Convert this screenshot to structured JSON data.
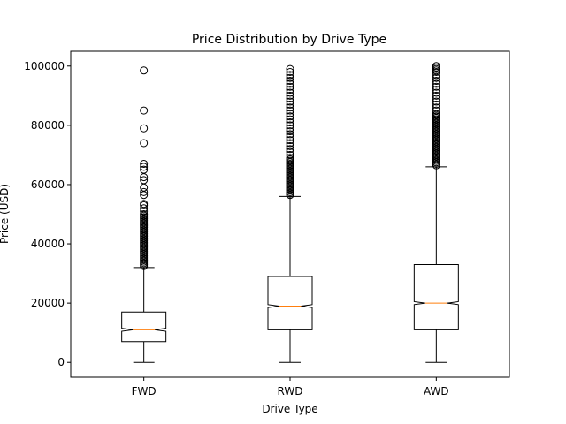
{
  "chart_data": {
    "type": "boxplot",
    "title": "Price Distribution by Drive Type",
    "xlabel": "Drive Type",
    "ylabel": "Price (USD)",
    "ylim": [
      -5000,
      105000
    ],
    "yticks": [
      0,
      20000,
      40000,
      60000,
      80000,
      100000
    ],
    "yticklabels": [
      "0",
      "20000",
      "40000",
      "60000",
      "80000",
      "100000"
    ],
    "notched": true,
    "grid": false,
    "colors": {
      "box": "#000000",
      "median": "#ff7f0e",
      "flier": "#000000"
    },
    "categories": [
      "FWD",
      "RWD",
      "AWD"
    ],
    "boxes": [
      {
        "name": "FWD",
        "whisker_low": 0,
        "q1": 7000,
        "median": 11000,
        "q3": 17000,
        "whisker_high": 32000,
        "notch": [
          10500,
          11500
        ],
        "fliers": [
          32500,
          33000,
          33500,
          34000,
          34500,
          35000,
          35500,
          36000,
          36500,
          37000,
          37500,
          38000,
          38500,
          39000,
          39500,
          40000,
          40500,
          41000,
          41500,
          42000,
          42500,
          43000,
          43500,
          44000,
          44500,
          45000,
          45500,
          46000,
          46500,
          47000,
          47500,
          48000,
          48500,
          49000,
          49500,
          50000,
          51000,
          52000,
          53000,
          53500,
          56500,
          57500,
          59000,
          61500,
          62500,
          65000,
          66000,
          67000,
          74000,
          79000,
          85000,
          98500
        ]
      },
      {
        "name": "RWD",
        "whisker_low": 0,
        "q1": 11000,
        "median": 19000,
        "q3": 29000,
        "whisker_high": 56000,
        "notch": [
          18500,
          19500
        ],
        "fliers": [
          56500,
          57000,
          57500,
          58000,
          58500,
          59000,
          59500,
          60000,
          60500,
          61000,
          61500,
          62000,
          62500,
          63000,
          63500,
          64000,
          64500,
          65000,
          65500,
          66000,
          66500,
          67000,
          67500,
          68000,
          68500,
          69000,
          70000,
          71000,
          72000,
          73000,
          74000,
          75000,
          76000,
          77000,
          78000,
          79000,
          80000,
          81000,
          82000,
          83000,
          84000,
          85000,
          86000,
          87000,
          88000,
          89000,
          90000,
          91000,
          92000,
          93000,
          94000,
          95000,
          96000,
          97000,
          98000,
          99000
        ]
      },
      {
        "name": "AWD",
        "whisker_low": 0,
        "q1": 11000,
        "median": 20000,
        "q3": 33000,
        "whisker_high": 66000,
        "notch": [
          19500,
          20500
        ],
        "fliers": [
          66500,
          67000,
          67500,
          68000,
          68500,
          69000,
          69500,
          70000,
          70500,
          71000,
          71500,
          72000,
          72500,
          73000,
          73500,
          74000,
          74500,
          75000,
          75500,
          76000,
          76500,
          77000,
          77500,
          78000,
          78500,
          79000,
          79500,
          80000,
          80500,
          81000,
          81500,
          82000,
          82500,
          83000,
          83500,
          84000,
          85000,
          86000,
          87000,
          88000,
          89000,
          90000,
          91000,
          92000,
          93000,
          94000,
          95000,
          96000,
          97000,
          98000,
          98500,
          99000,
          99500,
          100000
        ]
      }
    ]
  }
}
